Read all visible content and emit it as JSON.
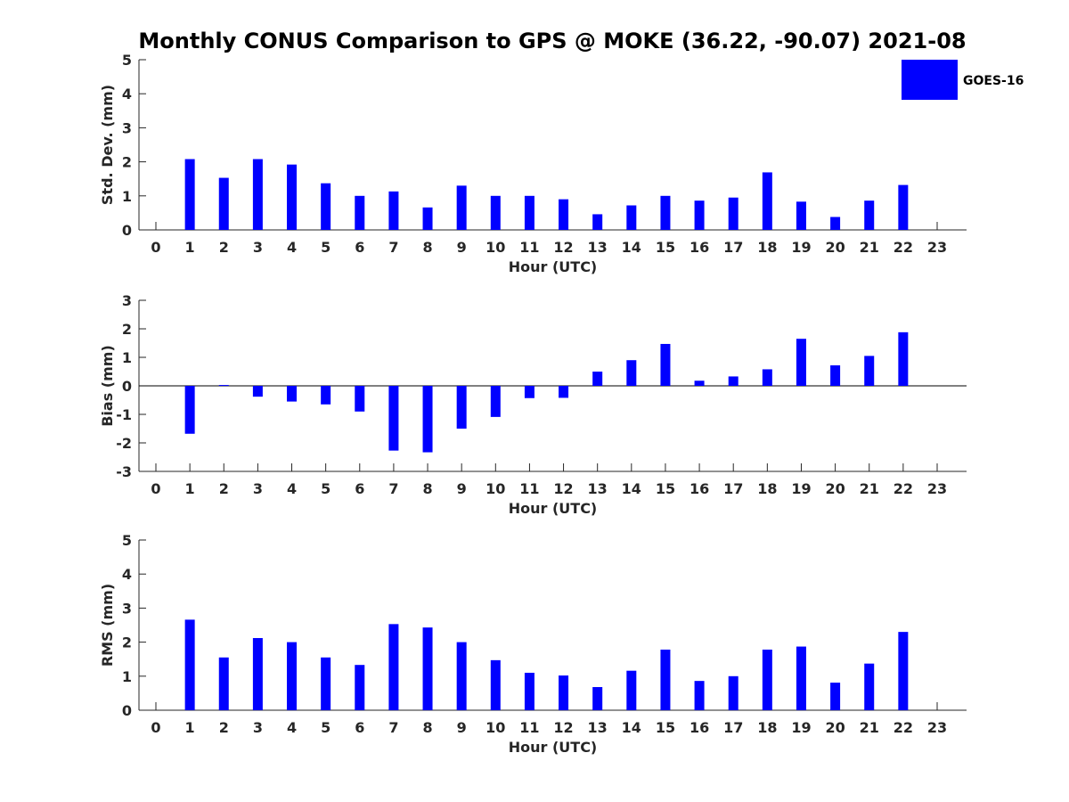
{
  "title": "Monthly CONUS Comparison to GPS @ MOKE (36.22, -90.07) 2021-08",
  "legend": {
    "label": "GOES-16",
    "color": "#0000ff",
    "placement": "top-right"
  },
  "chart_data": [
    {
      "type": "bar",
      "title": "Monthly CONUS Comparison to GPS @ MOKE (36.22, -90.07) 2021-08",
      "xlabel": "Hour (UTC)",
      "ylabel": "Std. Dev. (mm)",
      "categories": [
        "0",
        "1",
        "2",
        "3",
        "4",
        "5",
        "6",
        "7",
        "8",
        "9",
        "10",
        "11",
        "12",
        "13",
        "14",
        "15",
        "16",
        "17",
        "18",
        "19",
        "20",
        "21",
        "22",
        "23"
      ],
      "series": [
        {
          "name": "GOES-16",
          "color": "#0000ff",
          "values": [
            null,
            2.08,
            1.53,
            2.08,
            1.92,
            1.37,
            1.0,
            1.13,
            0.66,
            1.3,
            1.0,
            1.0,
            0.9,
            0.46,
            0.72,
            1.0,
            0.86,
            0.95,
            1.69,
            0.83,
            0.38,
            0.86,
            1.32,
            null
          ]
        }
      ],
      "ylim": [
        0,
        5
      ],
      "yticks": [
        "0",
        "1",
        "2",
        "3",
        "4",
        "5"
      ],
      "legend": "top-right"
    },
    {
      "type": "bar",
      "xlabel": "Hour (UTC)",
      "ylabel": "Bias (mm)",
      "categories": [
        "0",
        "1",
        "2",
        "3",
        "4",
        "5",
        "6",
        "7",
        "8",
        "9",
        "10",
        "11",
        "12",
        "13",
        "14",
        "15",
        "16",
        "17",
        "18",
        "19",
        "20",
        "21",
        "22",
        "23"
      ],
      "series": [
        {
          "name": "GOES-16",
          "color": "#0000ff",
          "values": [
            null,
            -1.68,
            0.03,
            -0.38,
            -0.55,
            -0.65,
            -0.9,
            -2.27,
            -2.33,
            -1.5,
            -1.09,
            -0.43,
            -0.42,
            0.5,
            0.9,
            1.47,
            0.18,
            0.33,
            0.58,
            1.65,
            0.72,
            1.05,
            1.88,
            null
          ]
        }
      ],
      "ylim": [
        -3,
        3
      ],
      "yticks": [
        "-3",
        "-2",
        "-1",
        "0",
        "1",
        "2",
        "3"
      ],
      "zero_line": true
    },
    {
      "type": "bar",
      "xlabel": "Hour (UTC)",
      "ylabel": "RMS (mm)",
      "categories": [
        "0",
        "1",
        "2",
        "3",
        "4",
        "5",
        "6",
        "7",
        "8",
        "9",
        "10",
        "11",
        "12",
        "13",
        "14",
        "15",
        "16",
        "17",
        "18",
        "19",
        "20",
        "21",
        "22",
        "23"
      ],
      "series": [
        {
          "name": "GOES-16",
          "color": "#0000ff",
          "values": [
            null,
            2.66,
            1.55,
            2.12,
            2.0,
            1.55,
            1.33,
            2.53,
            2.43,
            2.0,
            1.47,
            1.1,
            1.02,
            0.68,
            1.16,
            1.78,
            0.86,
            1.0,
            1.78,
            1.87,
            0.81,
            1.37,
            2.3,
            null
          ]
        }
      ],
      "ylim": [
        0,
        5
      ],
      "yticks": [
        "0",
        "1",
        "2",
        "3",
        "4",
        "5"
      ]
    }
  ]
}
